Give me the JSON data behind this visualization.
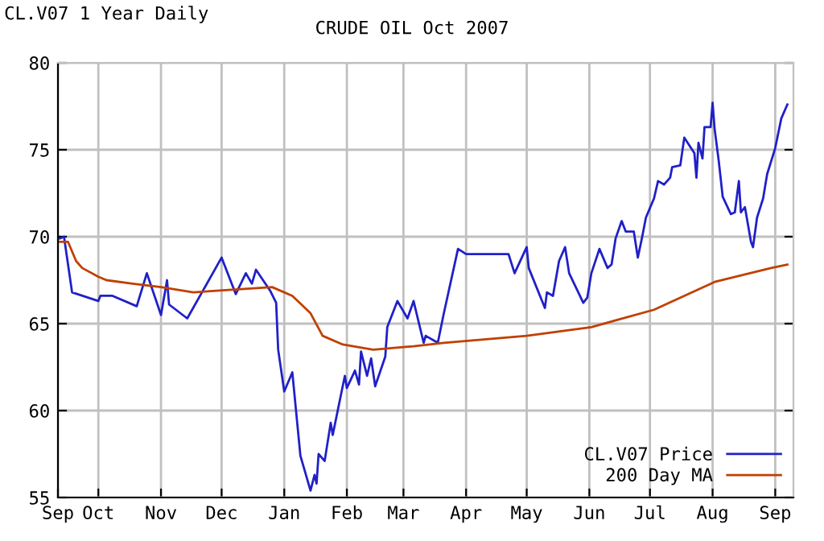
{
  "chart_data": {
    "type": "line",
    "title": "CRUDE OIL Oct 2007",
    "annotations": [
      "CL.V07 1 Year Daily"
    ],
    "series": [
      {
        "name": "CL.V07 Price",
        "color": "#2020c8",
        "x": [
          "2006-09-12",
          "2006-09-14",
          "2006-09-18",
          "2006-10-01",
          "2006-10-02",
          "2006-10-08",
          "2006-10-20",
          "2006-10-25",
          "2006-11-01",
          "2006-11-04",
          "2006-11-05",
          "2006-11-14",
          "2006-12-01",
          "2006-12-08",
          "2006-12-13",
          "2006-12-16",
          "2006-12-18",
          "2006-12-25",
          "2006-12-28",
          "2006-12-29",
          "2007-01-01",
          "2007-01-05",
          "2007-01-09",
          "2007-01-14",
          "2007-01-16",
          "2007-01-17",
          "2007-01-18",
          "2007-01-21",
          "2007-01-24",
          "2007-01-25",
          "2007-01-31",
          "2007-02-01",
          "2007-02-05",
          "2007-02-07",
          "2007-02-08",
          "2007-02-11",
          "2007-02-13",
          "2007-02-15",
          "2007-02-20",
          "2007-02-21",
          "2007-02-26",
          "2007-03-03",
          "2007-03-06",
          "2007-03-11",
          "2007-03-12",
          "2007-03-18",
          "2007-03-21",
          "2007-03-28",
          "2007-04-01",
          "2007-04-22",
          "2007-04-25",
          "2007-05-01",
          "2007-05-02",
          "2007-05-10",
          "2007-05-11",
          "2007-05-14",
          "2007-05-17",
          "2007-05-20",
          "2007-05-22",
          "2007-05-29",
          "2007-05-31",
          "2007-06-02",
          "2007-06-06",
          "2007-06-10",
          "2007-06-12",
          "2007-06-14",
          "2007-06-17",
          "2007-06-19",
          "2007-06-23",
          "2007-06-25",
          "2007-06-27",
          "2007-06-29",
          "2007-07-03",
          "2007-07-05",
          "2007-07-08",
          "2007-07-11",
          "2007-07-12",
          "2007-07-16",
          "2007-07-18",
          "2007-07-23",
          "2007-07-24",
          "2007-07-25",
          "2007-07-27",
          "2007-07-28",
          "2007-07-31",
          "2007-08-01",
          "2007-08-02",
          "2007-08-04",
          "2007-08-06",
          "2007-08-10",
          "2007-08-12",
          "2007-08-14",
          "2007-08-15",
          "2007-08-17",
          "2007-08-20",
          "2007-08-21",
          "2007-08-23",
          "2007-08-26",
          "2007-08-28",
          "2007-09-01",
          "2007-09-04",
          "2007-09-07"
        ],
        "values": [
          69.9,
          70.0,
          66.8,
          66.3,
          66.6,
          66.6,
          66.0,
          67.9,
          65.5,
          67.5,
          66.1,
          65.3,
          68.8,
          66.7,
          67.9,
          67.3,
          68.1,
          66.9,
          66.2,
          63.5,
          61.1,
          62.2,
          57.4,
          55.4,
          56.3,
          55.8,
          57.5,
          57.1,
          59.3,
          58.6,
          62.0,
          61.3,
          62.3,
          61.5,
          63.4,
          62.0,
          63.0,
          61.4,
          63.1,
          64.8,
          66.3,
          65.3,
          66.3,
          63.9,
          64.3,
          63.9,
          65.6,
          69.3,
          69.0,
          69.0,
          67.9,
          69.4,
          68.2,
          65.9,
          66.8,
          66.6,
          68.6,
          69.4,
          67.9,
          66.2,
          66.5,
          67.9,
          69.3,
          68.2,
          68.4,
          69.9,
          70.9,
          70.3,
          70.3,
          68.8,
          69.9,
          71.1,
          72.2,
          73.2,
          73.0,
          73.4,
          74.0,
          74.1,
          75.7,
          74.8,
          73.4,
          75.4,
          74.5,
          76.3,
          76.3,
          77.7,
          76.2,
          74.4,
          72.3,
          71.3,
          71.4,
          73.2,
          71.4,
          71.7,
          69.7,
          69.4,
          71.1,
          72.2,
          73.6,
          75.1,
          76.8,
          77.6
        ]
      },
      {
        "name": "200 Day MA",
        "color": "#c04000",
        "x": [
          "2006-09-12",
          "2006-09-16",
          "2006-09-20",
          "2006-09-23",
          "2006-10-01",
          "2006-10-05",
          "2006-10-18",
          "2006-11-01",
          "2006-11-17",
          "2006-11-30",
          "2006-12-26",
          "2007-01-05",
          "2007-01-14",
          "2007-01-20",
          "2007-01-30",
          "2007-02-14",
          "2007-03-06",
          "2007-03-21",
          "2007-05-01",
          "2007-06-02",
          "2007-07-03",
          "2007-08-02",
          "2007-08-30",
          "2007-09-07"
        ],
        "values": [
          69.7,
          69.7,
          68.6,
          68.2,
          67.7,
          67.5,
          67.3,
          67.1,
          66.8,
          66.9,
          67.1,
          66.6,
          65.6,
          64.3,
          63.8,
          63.5,
          63.7,
          63.9,
          64.3,
          64.8,
          65.8,
          67.4,
          68.2,
          68.4
        ]
      }
    ],
    "xlim": [
      "2006-09-11",
      "2007-09-10"
    ],
    "xticks": [
      {
        "value": "2006-09-11",
        "label": "Sep"
      },
      {
        "value": "2006-10-01",
        "label": "Oct"
      },
      {
        "value": "2006-11-01",
        "label": "Nov"
      },
      {
        "value": "2006-12-01",
        "label": "Dec"
      },
      {
        "value": "2007-01-01",
        "label": "Jan"
      },
      {
        "value": "2007-02-01",
        "label": "Feb"
      },
      {
        "value": "2007-03-01",
        "label": "Mar"
      },
      {
        "value": "2007-04-01",
        "label": "Apr"
      },
      {
        "value": "2007-05-01",
        "label": "May"
      },
      {
        "value": "2007-06-01",
        "label": "Jun"
      },
      {
        "value": "2007-07-01",
        "label": "Jul"
      },
      {
        "value": "2007-08-01",
        "label": "Aug"
      },
      {
        "value": "2007-09-01",
        "label": "Sep"
      }
    ],
    "ylim": [
      55,
      80
    ],
    "yticks": [
      55,
      60,
      65,
      70,
      75,
      80
    ],
    "grid": true,
    "legend": "bottom right",
    "marker": "none",
    "line_style": "solid"
  }
}
